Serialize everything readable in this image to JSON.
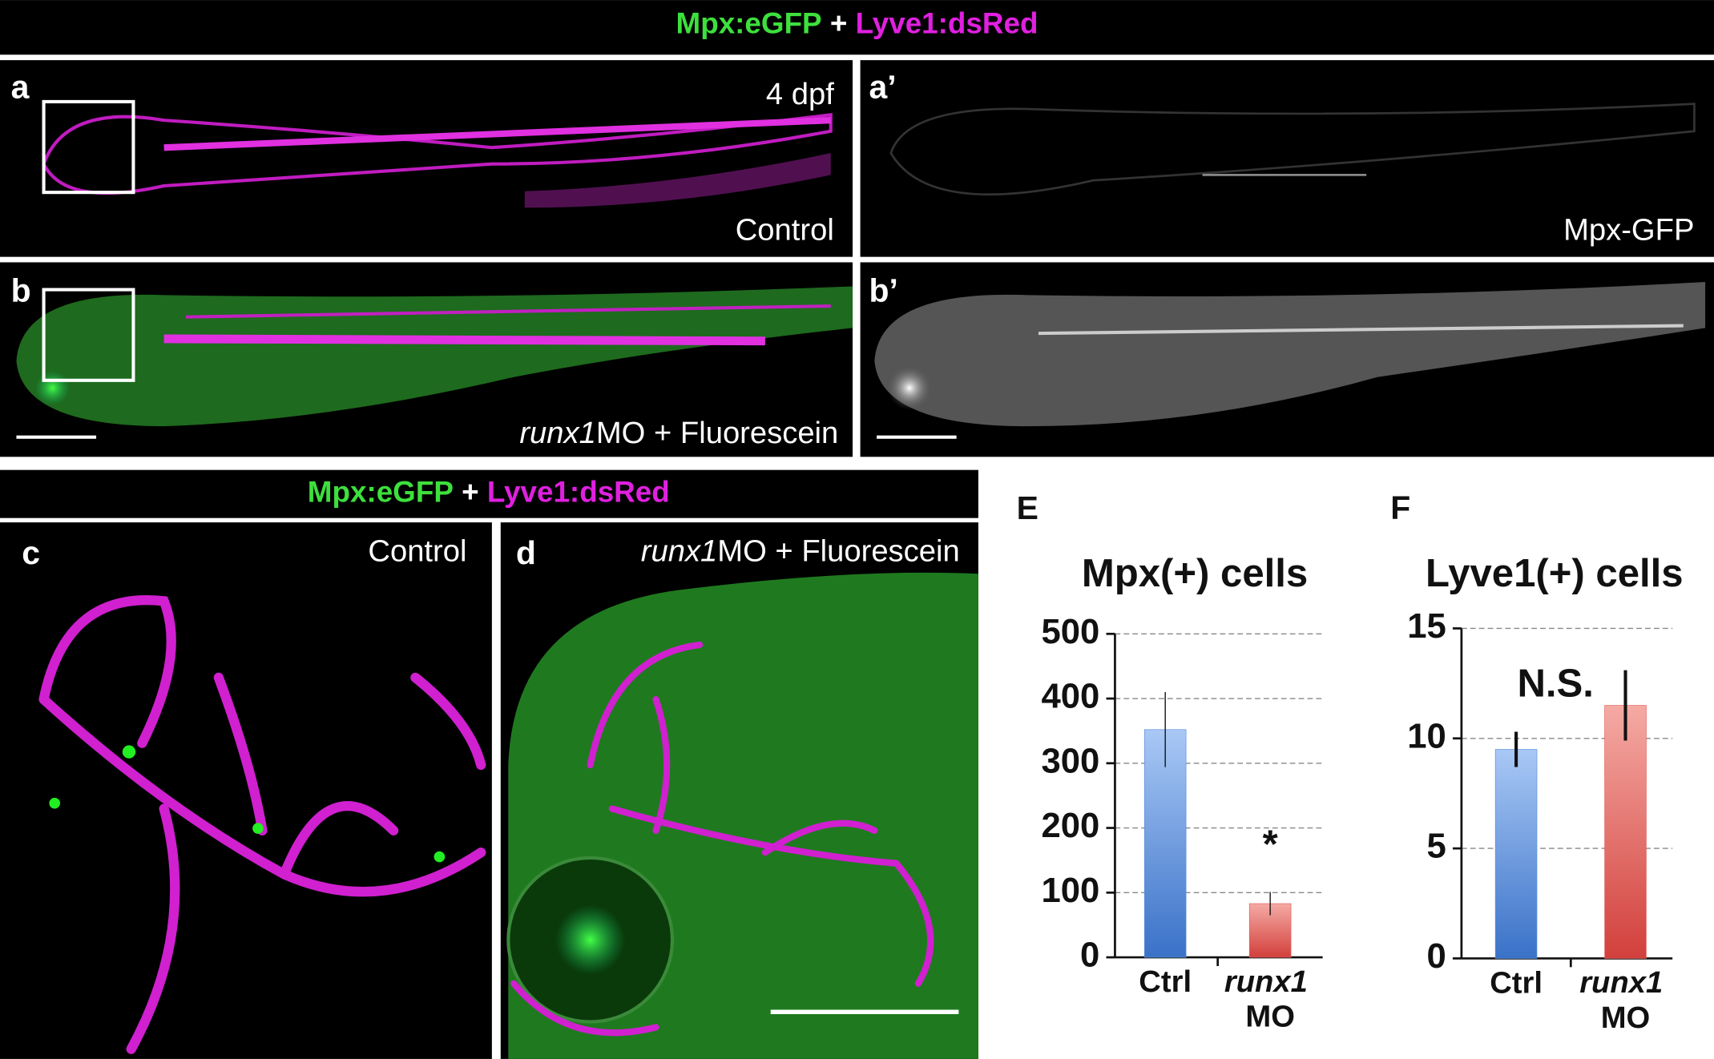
{
  "headers": [
    {
      "green": "Mpx:eGFP",
      "plus": "+",
      "magenta": "Lyve1:dsRed"
    },
    {
      "green": "Mpx:eGFP",
      "plus": "+",
      "magenta": "Lyve1:dsRed"
    }
  ],
  "panels": {
    "a": {
      "label": "a",
      "stage": "4 dpf",
      "caption": "Control"
    },
    "a_prime": {
      "label": "a’",
      "caption": "Mpx-GFP"
    },
    "b": {
      "label": "b",
      "caption_italic": "runx1",
      "caption": "MO + Fluorescein"
    },
    "b_prime": {
      "label": "b’"
    },
    "c": {
      "label": "c",
      "caption": "Control"
    },
    "d": {
      "label": "d",
      "caption_italic": "runx1",
      "caption": "MO + Fluorescein"
    }
  },
  "chart_data": [
    {
      "type": "bar",
      "label": "E",
      "title": "Mpx(+) cells",
      "categories": [
        "Ctrl",
        "runx1 MO"
      ],
      "values": [
        352,
        83
      ],
      "errors": [
        58,
        18
      ],
      "colors": [
        "#5b8fdc",
        "#e0605c"
      ],
      "ylim": [
        0,
        500
      ],
      "yticks": [
        0,
        100,
        200,
        300,
        400,
        500
      ],
      "grid": true,
      "annotation": "*"
    },
    {
      "type": "bar",
      "label": "F",
      "title": "Lyve1(+) cells",
      "categories": [
        "Ctrl",
        "runx1 MO"
      ],
      "values": [
        9.5,
        11.5
      ],
      "errors": [
        0.8,
        1.6
      ],
      "colors": [
        "#5b8fdc",
        "#e0605c"
      ],
      "ylim": [
        0,
        15
      ],
      "yticks": [
        0,
        5,
        10,
        15
      ],
      "grid": true,
      "annotation": "N.S."
    }
  ]
}
